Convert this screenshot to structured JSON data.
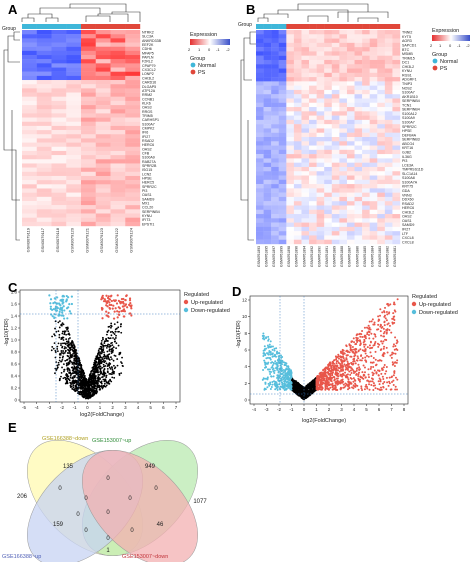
{
  "panels": {
    "A": {
      "label": "A",
      "legend": {
        "expression_title": "Expression",
        "expression_ticks": [
          "2",
          "1",
          "0",
          "-1",
          "-2"
        ],
        "group_title": "Group",
        "group_items": [
          "Normal",
          "PS"
        ]
      },
      "group_row_label": "Group",
      "genes": [
        "NTRK2",
        "SLC3A",
        "ANKRD33B",
        "EEF2K",
        "CDH6",
        "MFAP5",
        "PAPLN",
        "F2RL2",
        "CPAP79",
        "CX3CL2",
        "LONP2",
        "CHI3L2",
        "CARD16",
        "DLGAP5",
        "ATP12A",
        "RRM2",
        "CCNB1",
        "KLK6",
        "OAS3",
        "RRGS",
        "TRIM5",
        "CARHSP1",
        "S100A7",
        "CMPK2",
        "IFI6",
        "IFI27",
        "RSAD2",
        "HERC6",
        "OAS2",
        "CFB",
        "S100A9",
        "RAB27A",
        "SPRR2B",
        "ISG15",
        "LCN2",
        "HPSE",
        "HERC5",
        "SPRR2C",
        "PI3",
        "OAS1",
        "SAMD9",
        "MX1",
        "CCL20",
        "SERPINB4",
        "KYNU",
        "IFIT3",
        "EPSTI1"
      ],
      "samples": [
        "GSM3079119",
        "GSM3079117",
        "GSM3079118",
        "GSM3079120",
        "GSM3079121",
        "GSM3079123",
        "GSM3079122",
        "GSM3079124"
      ]
    },
    "B": {
      "label": "B",
      "legend": {
        "expression_title": "Expression",
        "expression_ticks": [
          "2",
          "1",
          "0",
          "-1",
          "-2"
        ],
        "group_title": "Group",
        "group_items": [
          "Normal",
          "PS"
        ]
      },
      "group_row_label": "Group",
      "genes": [
        "TNNI2",
        "KYT5",
        "AGR3",
        "SAPCD1",
        "BTC",
        "MSMB",
        "TRIM15",
        "DC1",
        "CHI3L2",
        "KYNU",
        "RGS1",
        "ADGRF1",
        "TNIP3",
        "NOS2",
        "S100A7",
        "AKR1B10",
        "SERPINB4",
        "TCN1",
        "SERPINB4",
        "S100A12",
        "S100A9",
        "S100A7",
        "SPRR2C",
        "HPSE",
        "DEFB4A",
        "SERPINB3",
        "ABCG4",
        "KRT16",
        "GJB2",
        "IL36G",
        "PI3",
        "LCE3A",
        "TMPRSS11D",
        "SLC1A14",
        "S100A8",
        "S100A7A",
        "KRT75",
        "GDA",
        "VNN3",
        "DDX60",
        "RSAD2",
        "HERC6",
        "CHI3L2",
        "OAS2",
        "OAS1",
        "SAMD9",
        "IFI27",
        "LTF",
        "CXCL8",
        "CXCL8"
      ],
      "samples": [
        "GSM4761893",
        "GSM4761895",
        "GSM4761897",
        "GSM4761899",
        "GSM4761898",
        "GSM4761896",
        "GSM4761894",
        "GSM4761892",
        "GSM4761890",
        "GSM4761891",
        "GSM4761889",
        "GSM4761888",
        "GSM4761887",
        "GSM4761886",
        "GSM4761885",
        "GSM4761884",
        "GSM4761883",
        "GSM4761882",
        "GSM4761881"
      ]
    },
    "C": {
      "label": "C",
      "xlabel": "log2(FoldChange)",
      "ylabel": "-log10(FDR)",
      "legend_title": "Regulated",
      "legend_items": [
        "Up-regulated",
        "Down-regulated"
      ],
      "xticks": [
        "-5",
        "-4",
        "-3",
        "-2",
        "-1",
        "0",
        "1",
        "2",
        "3",
        "4",
        "5",
        "6",
        "7"
      ],
      "yticks": [
        "1.8",
        "1.6",
        "1.4",
        "1.2",
        "1.0",
        "0.8",
        "0.6",
        "0.4",
        "0.2",
        "0"
      ]
    },
    "D": {
      "label": "D",
      "xlabel": "log2(FoldChange)",
      "ylabel": "-log10(FDR)",
      "legend_title": "Regulated",
      "legend_items": [
        "Up-regulated",
        "Down-regulated"
      ],
      "xticks": [
        "-4",
        "-3",
        "-2",
        "-1",
        "0",
        "1",
        "2",
        "3",
        "4",
        "5",
        "6",
        "7",
        "8"
      ],
      "yticks": [
        "12",
        "10",
        "8",
        "6",
        "4",
        "2",
        "0"
      ]
    },
    "E": {
      "label": "E",
      "sets": [
        "GSE166388~down",
        "GSE153007~up",
        "GSE166388~up",
        "GSE153007~down"
      ],
      "counts": {
        "only_set1": "135",
        "only_set2": "949",
        "only_set3": "206",
        "only_set4": "1077",
        "s1_s2": "0",
        "s1_s3": "0",
        "s2_s4": "0",
        "s1_s3_center": "0",
        "s3_s4": "0",
        "center_all": "0",
        "s1_s2_s3": "0",
        "s1_s2_s4": "0",
        "s3_left_low": "159",
        "s2_s4_low": "46",
        "s3_s4_low": "0",
        "bottom": "1",
        "left_mid": "0",
        "right_mid": "0"
      }
    }
  },
  "colors": {
    "normal": "#3fb7d9",
    "ps": "#e0473a",
    "up": "#e8564a",
    "down": "#56bedc",
    "ns": "#000000",
    "set1": "#fff9b0",
    "set2": "#b9eab0",
    "set3": "#c7d3f3",
    "set4": "#f3b0b2"
  }
}
